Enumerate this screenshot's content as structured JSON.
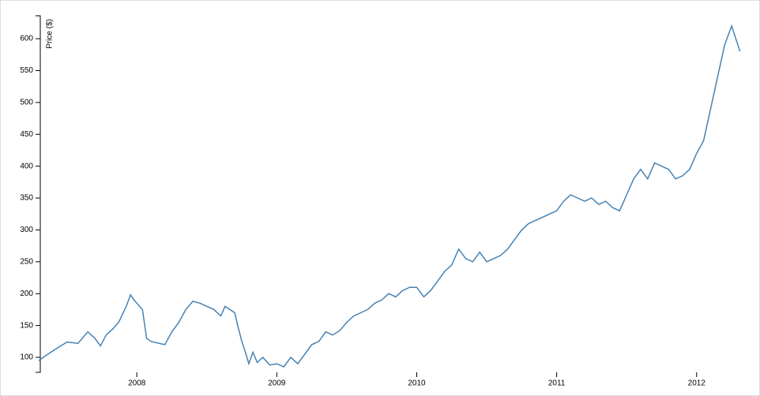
{
  "chart_data": {
    "type": "line",
    "y_label": "Price ($)",
    "x": [
      2007.3,
      2007.35,
      2007.42,
      2007.5,
      2007.58,
      2007.65,
      2007.7,
      2007.74,
      2007.78,
      2007.83,
      2007.87,
      2007.92,
      2007.955,
      2007.98,
      2008.04,
      2008.07,
      2008.1,
      2008.2,
      2008.25,
      2008.3,
      2008.35,
      2008.4,
      2008.45,
      2008.55,
      2008.6,
      2008.63,
      2008.7,
      2008.72,
      2008.75,
      2008.78,
      2008.8,
      2008.83,
      2008.86,
      2008.9,
      2008.95,
      2009.0,
      2009.05,
      2009.1,
      2009.15,
      2009.2,
      2009.25,
      2009.3,
      2009.35,
      2009.4,
      2009.45,
      2009.5,
      2009.55,
      2009.6,
      2009.65,
      2009.7,
      2009.75,
      2009.8,
      2009.85,
      2009.9,
      2009.95,
      2010.0,
      2010.05,
      2010.1,
      2010.15,
      2010.2,
      2010.25,
      2010.3,
      2010.35,
      2010.4,
      2010.45,
      2010.5,
      2010.55,
      2010.6,
      2010.65,
      2010.7,
      2010.75,
      2010.8,
      2010.85,
      2010.9,
      2010.95,
      2011.0,
      2011.05,
      2011.1,
      2011.15,
      2011.2,
      2011.25,
      2011.3,
      2011.35,
      2011.4,
      2011.45,
      2011.5,
      2011.55,
      2011.6,
      2011.65,
      2011.7,
      2011.75,
      2011.8,
      2011.85,
      2011.9,
      2011.95,
      2012.0,
      2012.05,
      2012.1,
      2012.15,
      2012.2,
      2012.25,
      2012.28,
      2012.31
    ],
    "series": [
      {
        "name": "Price ($)",
        "color": "#4682b4",
        "values": [
          95,
          103,
          113,
          124,
          122,
          140,
          130,
          118,
          135,
          145,
          155,
          178,
          198,
          190,
          175,
          130,
          125,
          120,
          140,
          155,
          175,
          188,
          185,
          175,
          165,
          180,
          170,
          150,
          125,
          105,
          90,
          108,
          92,
          100,
          88,
          90,
          85,
          100,
          90,
          105,
          120,
          125,
          140,
          135,
          142,
          155,
          165,
          170,
          175,
          185,
          190,
          200,
          195,
          205,
          210,
          210,
          195,
          205,
          220,
          235,
          245,
          270,
          255,
          250,
          265,
          250,
          255,
          260,
          270,
          285,
          300,
          310,
          315,
          320,
          325,
          330,
          345,
          355,
          350,
          345,
          350,
          340,
          345,
          335,
          330,
          355,
          380,
          395,
          380,
          405,
          400,
          395,
          380,
          385,
          395,
          420,
          440,
          490,
          540,
          590,
          620,
          600,
          580
        ]
      }
    ],
    "xlim": [
      2007.31,
      2012.34
    ],
    "ylim": [
      76.5,
      636
    ],
    "xticks": [
      2008,
      2009,
      2010,
      2011,
      2012
    ],
    "yticks": [
      100,
      150,
      200,
      250,
      300,
      350,
      400,
      450,
      500,
      550,
      600
    ]
  }
}
